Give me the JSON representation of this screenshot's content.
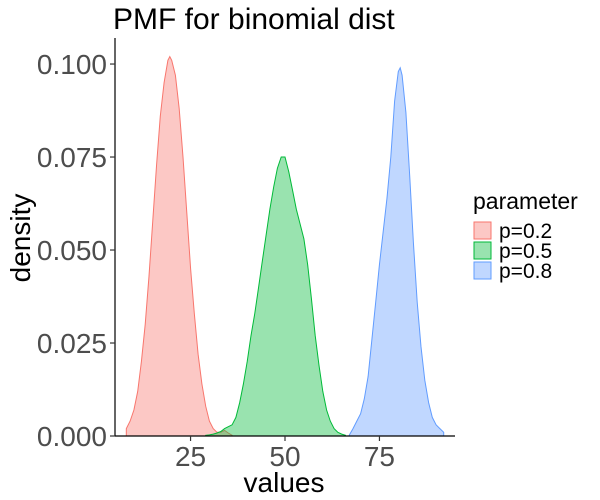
{
  "chart_data": {
    "type": "area",
    "title": "PMF for binomial dist",
    "xlabel": "values",
    "ylabel": "density",
    "xlim": [
      5,
      95
    ],
    "ylim": [
      0,
      0.107
    ],
    "x_ticks": [
      25,
      50,
      75
    ],
    "y_ticks": [
      0.0,
      0.025,
      0.05,
      0.075,
      0.1
    ],
    "y_tick_labels": [
      "0.000",
      "0.025",
      "0.050",
      "0.075",
      "0.100"
    ],
    "grid": false,
    "legend": {
      "title": "parameter",
      "placement": "right"
    },
    "series": [
      {
        "name": "p=0.2",
        "fill": "#F8766D",
        "stroke": "#F8766D",
        "points": [
          [
            8,
            0.002
          ],
          [
            9,
            0.004
          ],
          [
            10,
            0.007
          ],
          [
            11,
            0.012
          ],
          [
            12,
            0.02
          ],
          [
            13,
            0.03
          ],
          [
            14,
            0.043
          ],
          [
            15,
            0.058
          ],
          [
            16,
            0.073
          ],
          [
            17,
            0.086
          ],
          [
            18,
            0.095
          ],
          [
            19,
            0.101
          ],
          [
            19.5,
            0.102
          ],
          [
            20,
            0.101
          ],
          [
            21,
            0.097
          ],
          [
            22,
            0.088
          ],
          [
            23,
            0.075
          ],
          [
            24,
            0.06
          ],
          [
            25,
            0.045
          ],
          [
            26,
            0.033
          ],
          [
            27,
            0.022
          ],
          [
            28,
            0.014
          ],
          [
            29,
            0.008
          ],
          [
            30,
            0.004
          ],
          [
            31,
            0.002
          ],
          [
            32,
            0.001
          ],
          [
            33,
            0.001
          ],
          [
            34,
            0.0015
          ],
          [
            35,
            0.0008
          ],
          [
            36,
            0.0002
          ]
        ]
      },
      {
        "name": "p=0.5",
        "fill": "#00BA38",
        "stroke": "#00BA38",
        "points": [
          [
            29,
            0.0002
          ],
          [
            30,
            0.0003
          ],
          [
            31,
            0.0005
          ],
          [
            32,
            0.0008
          ],
          [
            33,
            0.0012
          ],
          [
            34,
            0.002
          ],
          [
            35,
            0.0025
          ],
          [
            36,
            0.003
          ],
          [
            37,
            0.005
          ],
          [
            38,
            0.009
          ],
          [
            39,
            0.014
          ],
          [
            40,
            0.02
          ],
          [
            41,
            0.027
          ],
          [
            42,
            0.033
          ],
          [
            43,
            0.04
          ],
          [
            44,
            0.047
          ],
          [
            45,
            0.054
          ],
          [
            46,
            0.061
          ],
          [
            47,
            0.067
          ],
          [
            48,
            0.072
          ],
          [
            49,
            0.075
          ],
          [
            50,
            0.075
          ],
          [
            51,
            0.071
          ],
          [
            52,
            0.066
          ],
          [
            53,
            0.061
          ],
          [
            54,
            0.057
          ],
          [
            55,
            0.053
          ],
          [
            56,
            0.046
          ],
          [
            57,
            0.037
          ],
          [
            58,
            0.027
          ],
          [
            59,
            0.019
          ],
          [
            60,
            0.012
          ],
          [
            61,
            0.007
          ],
          [
            62,
            0.004
          ],
          [
            63,
            0.002
          ],
          [
            64,
            0.001
          ],
          [
            65,
            0.0005
          ],
          [
            66,
            0.0002
          ]
        ]
      },
      {
        "name": "p=0.8",
        "fill": "#619CFF",
        "stroke": "#619CFF",
        "points": [
          [
            67,
            0.0002
          ],
          [
            68,
            0.002
          ],
          [
            69,
            0.004
          ],
          [
            70,
            0.006
          ],
          [
            71,
            0.01
          ],
          [
            72,
            0.016
          ],
          [
            73,
            0.026
          ],
          [
            74,
            0.036
          ],
          [
            75,
            0.046
          ],
          [
            76,
            0.055
          ],
          [
            77,
            0.064
          ],
          [
            78,
            0.075
          ],
          [
            79,
            0.09
          ],
          [
            80,
            0.098
          ],
          [
            80.5,
            0.099
          ],
          [
            81,
            0.097
          ],
          [
            82,
            0.087
          ],
          [
            83,
            0.07
          ],
          [
            84,
            0.052
          ],
          [
            85,
            0.036
          ],
          [
            86,
            0.024
          ],
          [
            87,
            0.015
          ],
          [
            88,
            0.009
          ],
          [
            89,
            0.005
          ],
          [
            90,
            0.003
          ],
          [
            91,
            0.002
          ],
          [
            92,
            0.001
          ]
        ]
      }
    ]
  }
}
